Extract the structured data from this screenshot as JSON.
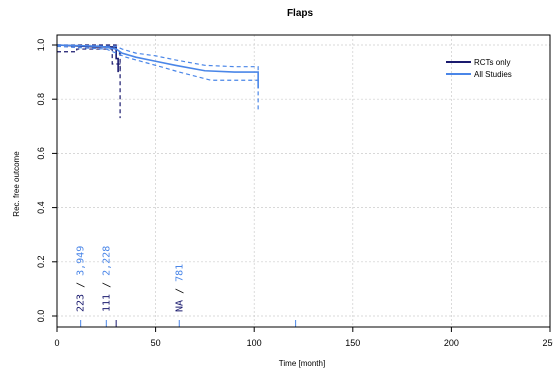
{
  "chart_data": {
    "type": "line",
    "title": "Flaps",
    "xlabel": "Time [month]",
    "ylabel": "Rec. free outcome",
    "xlim": [
      0,
      250
    ],
    "ylim": [
      0,
      1
    ],
    "x_ticks": [
      "0",
      "50",
      "100",
      "150",
      "200",
      "250"
    ],
    "y_ticks": [
      "0.0",
      "0.2",
      "0.4",
      "0.6",
      "0.8",
      "1.0"
    ],
    "grid": true,
    "legend_position": "top-right",
    "colors": {
      "rcts": "#1a1a6e",
      "all": "#4a86e8",
      "grid": "#cccccc"
    },
    "series": [
      {
        "name": "RCTs only",
        "key": "rcts",
        "estimate": [
          [
            0,
            1.0
          ],
          [
            20,
            0.993
          ],
          [
            30,
            0.993
          ],
          [
            30,
            0.95
          ],
          [
            31,
            0.95
          ],
          [
            31,
            0.9
          ]
        ],
        "upper": [
          [
            0,
            1.0
          ],
          [
            30,
            1.0
          ],
          [
            30,
            0.97
          ],
          [
            32,
            0.97
          ],
          [
            32,
            0.91
          ]
        ],
        "lower": [
          [
            0,
            0.975
          ],
          [
            10,
            0.975
          ],
          [
            10,
            0.985
          ],
          [
            28,
            0.985
          ],
          [
            28,
            0.93
          ],
          [
            32,
            0.93
          ],
          [
            32,
            0.73
          ]
        ]
      },
      {
        "name": "All Studies",
        "key": "all",
        "estimate": [
          [
            0,
            1.0
          ],
          [
            22,
            0.995
          ],
          [
            30,
            0.985
          ],
          [
            33,
            0.97
          ],
          [
            40,
            0.955
          ],
          [
            50,
            0.94
          ],
          [
            60,
            0.925
          ],
          [
            75,
            0.905
          ],
          [
            90,
            0.9
          ],
          [
            102,
            0.9
          ],
          [
            102,
            0.84
          ]
        ],
        "upper": [
          [
            0,
            1.0
          ],
          [
            30,
            0.995
          ],
          [
            33,
            0.985
          ],
          [
            40,
            0.97
          ],
          [
            50,
            0.96
          ],
          [
            60,
            0.945
          ],
          [
            75,
            0.925
          ],
          [
            90,
            0.92
          ],
          [
            102,
            0.92
          ],
          [
            102,
            0.89
          ]
        ],
        "lower": [
          [
            0,
            0.995
          ],
          [
            25,
            0.985
          ],
          [
            30,
            0.97
          ],
          [
            35,
            0.955
          ],
          [
            45,
            0.935
          ],
          [
            55,
            0.915
          ],
          [
            62,
            0.9
          ],
          [
            78,
            0.87
          ],
          [
            102,
            0.87
          ],
          [
            102,
            0.76
          ]
        ]
      }
    ],
    "event_ticks": [
      {
        "x": 30,
        "key": "rcts"
      },
      {
        "x": 12,
        "key": "all"
      },
      {
        "x": 25,
        "key": "all"
      },
      {
        "x": 62,
        "key": "all"
      },
      {
        "x": 121,
        "key": "all"
      }
    ],
    "risk_table": [
      {
        "x": 12,
        "rcts": "223",
        "all": "3,949"
      },
      {
        "x": 25,
        "rcts": "111",
        "all": "2,228"
      },
      {
        "x": 62,
        "rcts": "NA",
        "all": "781"
      }
    ]
  }
}
